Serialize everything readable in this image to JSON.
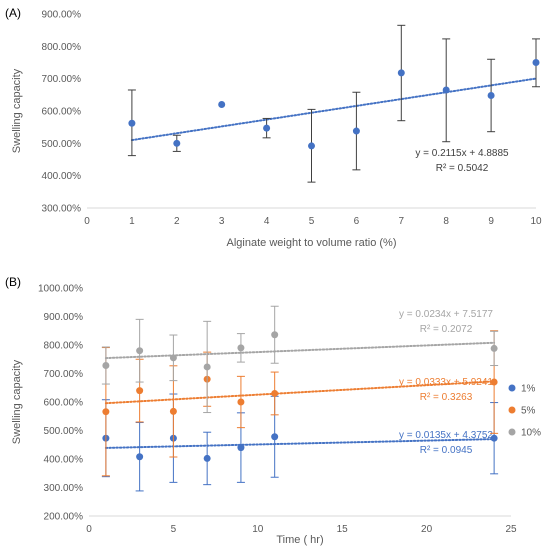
{
  "chart_data": [
    {
      "panel_label": "(A)",
      "type": "scatter",
      "xlabel": "Alginate weight to volume ratio (%)",
      "ylabel": "Swelling capacity",
      "xlim": [
        0,
        10
      ],
      "ylim": [
        300,
        900
      ],
      "xticks": [
        0,
        1,
        2,
        3,
        4,
        5,
        6,
        7,
        8,
        9,
        10
      ],
      "yticks": [
        300,
        400,
        500,
        600,
        700,
        800,
        900
      ],
      "xtick_labels": [
        "0",
        "1",
        "2",
        "3",
        "4",
        "5",
        "6",
        "7",
        "8",
        "9",
        "10"
      ],
      "ytick_labels": [
        "300.00%",
        "400.00%",
        "500.00%",
        "600.00%",
        "700.00%",
        "800.00%",
        "900.00%"
      ],
      "series": [
        {
          "color": "#4472c4",
          "x": [
            1,
            2,
            3,
            4,
            5,
            6,
            7,
            8,
            9,
            10
          ],
          "y": [
            562,
            500,
            620,
            547,
            492,
            538,
            718,
            665,
            648,
            750
          ],
          "err_low": [
            100,
            25,
            0,
            30,
            112,
            120,
            148,
            160,
            112,
            75
          ],
          "err_high": [
            103,
            25,
            0,
            30,
            113,
            120,
            147,
            158,
            112,
            73
          ],
          "trendline": {
            "slope": 21.15,
            "intercept": 488.85
          },
          "equation": "y = 0.2115x + 4.8885",
          "r2": "R² = 0.5042"
        }
      ],
      "grid": false,
      "legend": "none"
    },
    {
      "panel_label": "(B)",
      "type": "scatter",
      "xlabel": "Time ( hr)",
      "ylabel": "Swelling capacity",
      "xlim": [
        0,
        25
      ],
      "ylim": [
        200,
        1000
      ],
      "xticks": [
        0,
        5,
        10,
        15,
        20,
        25
      ],
      "yticks": [
        200,
        300,
        400,
        500,
        600,
        700,
        800,
        900,
        1000
      ],
      "xtick_labels": [
        "0",
        "5",
        "10",
        "15",
        "20",
        "25"
      ],
      "ytick_labels": [
        "200.00%",
        "300.00%",
        "400.00%",
        "500.00%",
        "600.00%",
        "700.00%",
        "800.00%",
        "900.00%",
        "1000.00%"
      ],
      "series": [
        {
          "name": "1%",
          "color": "#4472c4",
          "x": [
            1,
            3,
            5,
            7,
            9,
            11,
            24
          ],
          "y": [
            473,
            408,
            473,
            402,
            440,
            478,
            473
          ],
          "err": [
            135,
            120,
            155,
            92,
            122,
            142,
            125
          ],
          "trendline": {
            "slope": 1.35,
            "intercept": 437.52
          },
          "equation": "y = 0.0135x + 4.3752",
          "r2": "R² = 0.0945"
        },
        {
          "name": "5%",
          "color": "#ed7d31",
          "x": [
            1,
            3,
            5,
            7,
            9,
            11,
            24
          ],
          "y": [
            566,
            640,
            567,
            680,
            600,
            630,
            670
          ],
          "err": [
            225,
            110,
            160,
            95,
            90,
            75,
            180
          ],
          "trendline": {
            "slope": 3.33,
            "intercept": 592.41
          },
          "equation": "y = 0.0333x + 5.9241",
          "r2": "R² = 0.3263"
        },
        {
          "name": "10%",
          "color": "#a5a5a5",
          "x": [
            1,
            3,
            5,
            7,
            9,
            11,
            24
          ],
          "y": [
            728,
            780,
            755,
            723,
            790,
            836,
            788
          ],
          "err": [
            65,
            110,
            80,
            160,
            50,
            100,
            60
          ],
          "trendline": {
            "slope": 2.34,
            "intercept": 751.77
          },
          "equation": "y = 0.0234x + 7.5177",
          "r2": "R² = 0.2072"
        }
      ],
      "grid": false,
      "legend": "right"
    }
  ]
}
